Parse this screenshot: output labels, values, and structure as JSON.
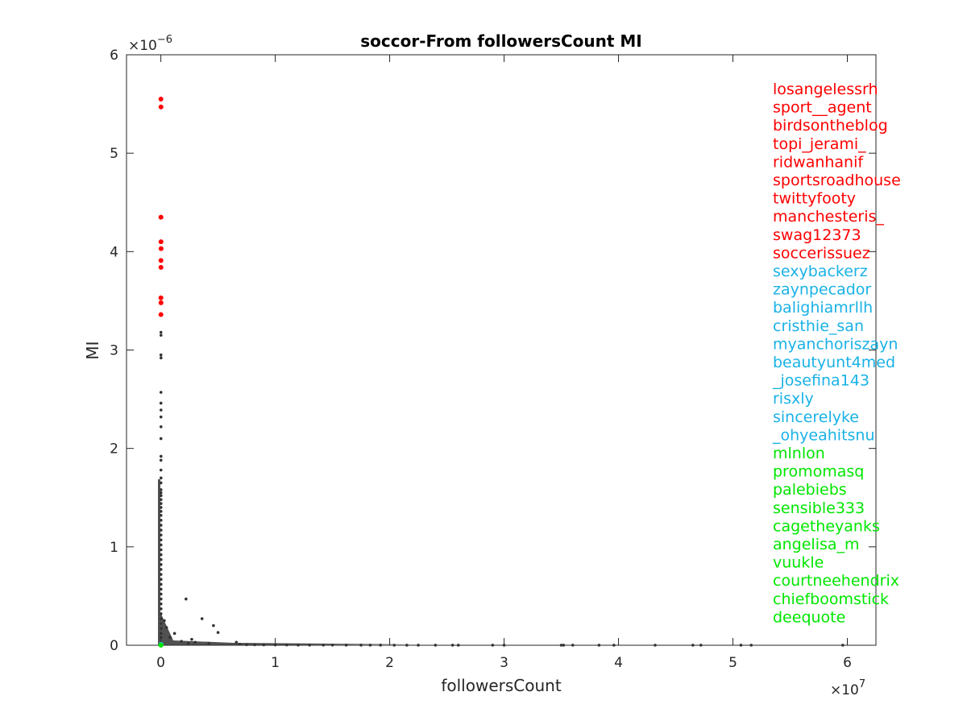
{
  "chart_data": {
    "type": "scatter",
    "title": "soccor-From followersCount MI",
    "xlabel": "followersCount",
    "ylabel": "MI",
    "x_exponent_label": "×10",
    "x_exponent_power": "7",
    "y_exponent_label": "×10",
    "y_exponent_power": "−6",
    "xlim": [
      -3000000,
      62500000
    ],
    "ylim": [
      0,
      6e-06
    ],
    "x_ticks": [
      0,
      10000000,
      20000000,
      30000000,
      40000000,
      50000000,
      60000000
    ],
    "x_tick_labels": [
      "0",
      "1",
      "2",
      "3",
      "4",
      "5",
      "6"
    ],
    "y_ticks": [
      0,
      1e-06,
      2e-06,
      3e-06,
      4e-06,
      5e-06,
      6e-06
    ],
    "y_tick_labels": [
      "0",
      "1",
      "2",
      "3",
      "4",
      "5",
      "6"
    ],
    "grid": false,
    "colors": {
      "top": "#ff0000",
      "middle": "#1ab2e6",
      "bottom": "#00e600",
      "other": "#333333"
    },
    "series": [
      {
        "color": "top",
        "points": [
          [
            5000,
            5.55e-06
          ],
          [
            12000,
            5.47e-06
          ],
          [
            8000,
            4.35e-06
          ],
          [
            15000,
            4.1e-06
          ],
          [
            20000,
            4.03e-06
          ],
          [
            9000,
            3.91e-06
          ],
          [
            11000,
            3.84e-06
          ],
          [
            6000,
            3.53e-06
          ],
          [
            13000,
            3.48e-06
          ],
          [
            7000,
            3.36e-06
          ]
        ]
      },
      {
        "color": "other",
        "points": [
          [
            10000,
            3.18e-06
          ],
          [
            14000,
            3.15e-06
          ],
          [
            9000,
            2.95e-06
          ],
          [
            16000,
            2.92e-06
          ],
          [
            12000,
            2.57e-06
          ],
          [
            8000,
            2.46e-06
          ],
          [
            15000,
            2.39e-06
          ],
          [
            11000,
            2.32e-06
          ],
          [
            13000,
            2.22e-06
          ],
          [
            10000,
            2.1e-06
          ],
          [
            14000,
            1.92e-06
          ],
          [
            9000,
            1.88e-06
          ],
          [
            12000,
            1.78e-06
          ],
          [
            16000,
            1.7e-06
          ],
          [
            11000,
            1.65e-06
          ],
          [
            13000,
            1.58e-06
          ],
          [
            10000,
            1.55e-06
          ],
          [
            15000,
            1.52e-06
          ],
          [
            12000,
            1.48e-06
          ],
          [
            14000,
            1.44e-06
          ],
          [
            11000,
            1.4e-06
          ],
          [
            13000,
            1.36e-06
          ],
          [
            10000,
            1.32e-06
          ],
          [
            16000,
            1.27e-06
          ],
          [
            12000,
            1.22e-06
          ],
          [
            14000,
            1.17e-06
          ],
          [
            11000,
            1.12e-06
          ],
          [
            13000,
            1.07e-06
          ],
          [
            10000,
            1.02e-06
          ],
          [
            15000,
            9.7e-07
          ],
          [
            12000,
            9.2e-07
          ],
          [
            14000,
            8.7e-07
          ],
          [
            11000,
            8.2e-07
          ],
          [
            13000,
            7.7e-07
          ],
          [
            10000,
            7.2e-07
          ],
          [
            16000,
            6.7e-07
          ],
          [
            12000,
            6.2e-07
          ],
          [
            14000,
            5.7e-07
          ],
          [
            11000,
            5.2e-07
          ],
          [
            13000,
            4.7e-07
          ],
          [
            10000,
            4.2e-07
          ],
          [
            15000,
            3.7e-07
          ],
          [
            12000,
            3.2e-07
          ],
          [
            14000,
            2.7e-07
          ],
          [
            11000,
            2.2e-07
          ],
          [
            13000,
            1.7e-07
          ],
          [
            10000,
            1.2e-07
          ],
          [
            16000,
            8e-08
          ],
          [
            2200000,
            4.7e-07
          ],
          [
            3600000,
            2.7e-07
          ],
          [
            4600000,
            2e-07
          ],
          [
            5000000,
            1.3e-07
          ],
          [
            1200000,
            1.2e-07
          ],
          [
            300000,
            2.5e-07
          ],
          [
            500000,
            1.8e-07
          ],
          [
            800000,
            8e-08
          ],
          [
            2700000,
            6e-08
          ],
          [
            3000000,
            3e-08
          ],
          [
            1800000,
            4e-08
          ],
          [
            2400000,
            2e-08
          ],
          [
            4200000,
            2e-08
          ],
          [
            6600000,
            3e-08
          ],
          [
            6900000,
            1e-08
          ],
          [
            7500000,
            6e-09
          ],
          [
            8200000,
            5e-09
          ],
          [
            9000000,
            4e-09
          ],
          [
            10000000,
            3e-09
          ],
          [
            11000000,
            3e-09
          ],
          [
            12000000,
            2e-09
          ],
          [
            13000000,
            2e-09
          ],
          [
            14200000,
            2e-09
          ],
          [
            15000000,
            2e-09
          ],
          [
            16200000,
            1.5e-09
          ],
          [
            17500000,
            1.5e-09
          ],
          [
            18300000,
            1.5e-09
          ],
          [
            19200000,
            1.5e-09
          ],
          [
            20400000,
            1e-09
          ],
          [
            21500000,
            1e-09
          ],
          [
            22500000,
            1e-09
          ],
          [
            24000000,
            1e-09
          ],
          [
            25500000,
            1e-09
          ],
          [
            26000000,
            1e-09
          ],
          [
            29000000,
            1e-09
          ],
          [
            30000000,
            1e-09
          ],
          [
            35000000,
            1e-09
          ],
          [
            35200000,
            1e-09
          ],
          [
            36000000,
            1e-09
          ],
          [
            38300000,
            1e-09
          ],
          [
            39600000,
            1e-09
          ],
          [
            43200000,
            1e-09
          ],
          [
            46500000,
            1e-09
          ],
          [
            47200000,
            1e-09
          ],
          [
            50700000,
            1e-09
          ],
          [
            51600000,
            1e-09
          ],
          [
            59600000,
            1e-09
          ]
        ]
      },
      {
        "color": "middle",
        "points": [
          [
            14000,
            1e-08
          ],
          [
            18000,
            8e-09
          ],
          [
            9000,
            6e-09
          ]
        ]
      },
      {
        "color": "bottom",
        "points": [
          [
            4000,
            2e-09
          ],
          [
            7000,
            1e-09
          ],
          [
            12000,
            1.5e-09
          ]
        ]
      }
    ],
    "annotations": [
      {
        "text": "losangelessrh",
        "color": "top"
      },
      {
        "text": "sport__agent",
        "color": "top"
      },
      {
        "text": "birdsontheblog",
        "color": "top"
      },
      {
        "text": "topi_jerami_",
        "color": "top"
      },
      {
        "text": "ridwanhanif",
        "color": "top"
      },
      {
        "text": "sportsroadhouse",
        "color": "top"
      },
      {
        "text": "twittyfooty",
        "color": "top"
      },
      {
        "text": "manchesteris_",
        "color": "top"
      },
      {
        "text": "swag12373",
        "color": "top"
      },
      {
        "text": "soccerissuez",
        "color": "top"
      },
      {
        "text": "sexybackerz",
        "color": "middle"
      },
      {
        "text": "zaynpecador",
        "color": "middle"
      },
      {
        "text": "balighiamrllh",
        "color": "middle"
      },
      {
        "text": "cristhie_san",
        "color": "middle"
      },
      {
        "text": "myanchoriszayn",
        "color": "middle"
      },
      {
        "text": "beautyunt4med",
        "color": "middle"
      },
      {
        "text": "_josefina143",
        "color": "middle"
      },
      {
        "text": "risxly",
        "color": "middle"
      },
      {
        "text": "sincerelyke",
        "color": "middle"
      },
      {
        "text": "_ohyeahitsnu",
        "color": "middle"
      },
      {
        "text": "mlnlon",
        "color": "bottom"
      },
      {
        "text": "promomasq",
        "color": "bottom"
      },
      {
        "text": "palebiebs",
        "color": "bottom"
      },
      {
        "text": "sensible333",
        "color": "bottom"
      },
      {
        "text": "cagetheyanks",
        "color": "bottom"
      },
      {
        "text": "angelisa_m",
        "color": "bottom"
      },
      {
        "text": "vuukle",
        "color": "bottom"
      },
      {
        "text": "courtneehendrix",
        "color": "bottom"
      },
      {
        "text": "chiefboomstick",
        "color": "bottom"
      },
      {
        "text": "deequote",
        "color": "bottom"
      }
    ]
  }
}
